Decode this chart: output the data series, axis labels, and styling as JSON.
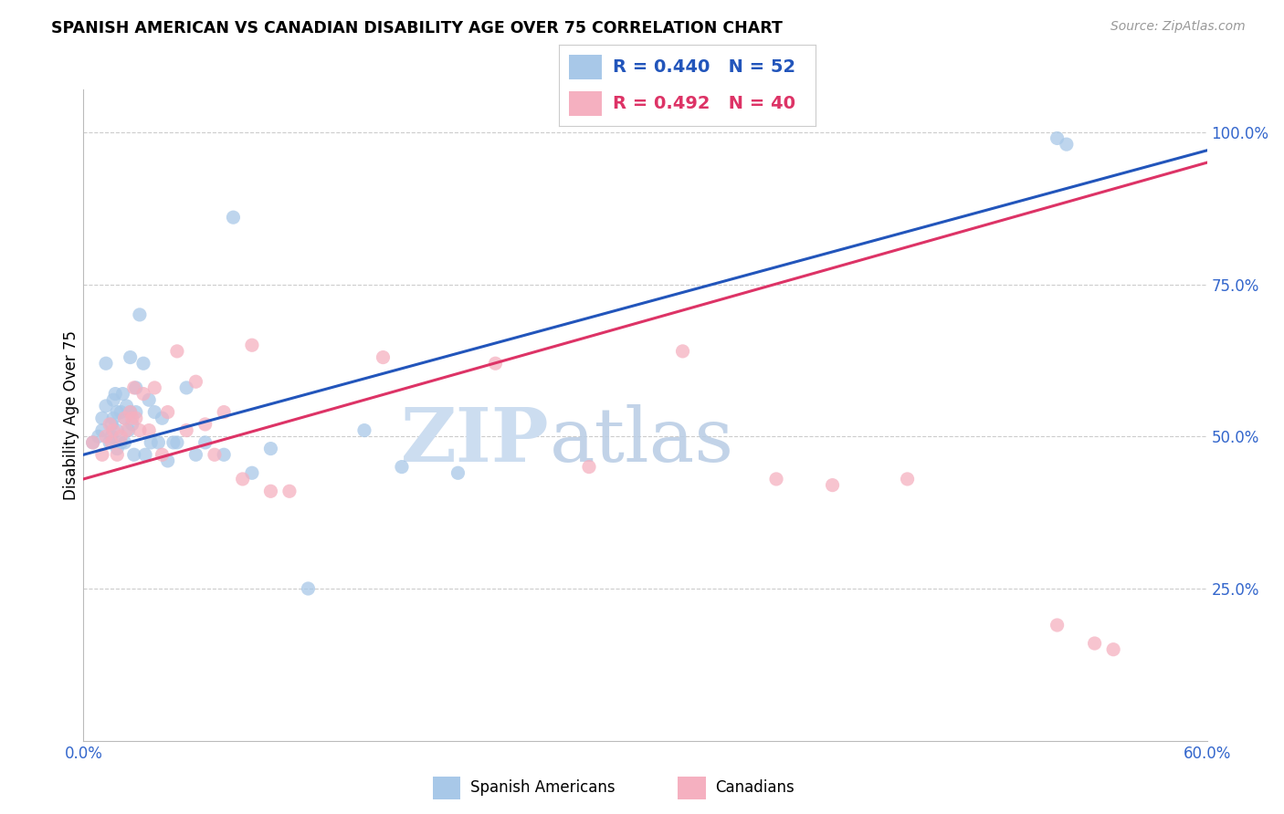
{
  "title": "SPANISH AMERICAN VS CANADIAN DISABILITY AGE OVER 75 CORRELATION CHART",
  "source": "Source: ZipAtlas.com",
  "ylabel": "Disability Age Over 75",
  "xmin": 0.0,
  "xmax": 0.6,
  "ymin": 0.0,
  "ymax": 1.07,
  "ytick_positions": [
    0.25,
    0.5,
    0.75,
    1.0
  ],
  "ytick_labels": [
    "25.0%",
    "50.0%",
    "75.0%",
    "100.0%"
  ],
  "blue_r": 0.44,
  "blue_n": 52,
  "pink_r": 0.492,
  "pink_n": 40,
  "blue_color": "#a8c8e8",
  "pink_color": "#f5b0c0",
  "blue_line_color": "#2255bb",
  "pink_line_color": "#dd3366",
  "axis_color": "#3366cc",
  "grid_color": "#cccccc",
  "blue_line_x0": 0.0,
  "blue_line_y0": 0.47,
  "blue_line_x1": 0.6,
  "blue_line_y1": 0.97,
  "pink_line_x0": 0.0,
  "pink_line_y0": 0.43,
  "pink_line_x1": 0.6,
  "pink_line_y1": 0.95,
  "blue_points_x": [
    0.005,
    0.008,
    0.01,
    0.01,
    0.012,
    0.012,
    0.014,
    0.015,
    0.015,
    0.016,
    0.016,
    0.017,
    0.018,
    0.018,
    0.018,
    0.02,
    0.02,
    0.021,
    0.022,
    0.022,
    0.023,
    0.024,
    0.025,
    0.025,
    0.026,
    0.027,
    0.028,
    0.028,
    0.03,
    0.032,
    0.033,
    0.035,
    0.036,
    0.038,
    0.04,
    0.042,
    0.045,
    0.048,
    0.05,
    0.055,
    0.06,
    0.065,
    0.075,
    0.08,
    0.09,
    0.1,
    0.12,
    0.15,
    0.17,
    0.2,
    0.52,
    0.525
  ],
  "blue_points_y": [
    0.49,
    0.5,
    0.51,
    0.53,
    0.55,
    0.62,
    0.49,
    0.5,
    0.52,
    0.53,
    0.56,
    0.57,
    0.48,
    0.51,
    0.54,
    0.49,
    0.54,
    0.57,
    0.49,
    0.53,
    0.55,
    0.51,
    0.54,
    0.63,
    0.52,
    0.47,
    0.54,
    0.58,
    0.7,
    0.62,
    0.47,
    0.56,
    0.49,
    0.54,
    0.49,
    0.53,
    0.46,
    0.49,
    0.49,
    0.58,
    0.47,
    0.49,
    0.47,
    0.86,
    0.44,
    0.48,
    0.25,
    0.51,
    0.45,
    0.44,
    0.99,
    0.98
  ],
  "pink_points_x": [
    0.005,
    0.01,
    0.012,
    0.014,
    0.015,
    0.016,
    0.018,
    0.02,
    0.022,
    0.023,
    0.025,
    0.026,
    0.027,
    0.028,
    0.03,
    0.032,
    0.035,
    0.038,
    0.042,
    0.045,
    0.05,
    0.055,
    0.06,
    0.065,
    0.07,
    0.075,
    0.085,
    0.09,
    0.1,
    0.11,
    0.16,
    0.22,
    0.27,
    0.32,
    0.37,
    0.4,
    0.44,
    0.52,
    0.54,
    0.55
  ],
  "pink_points_y": [
    0.49,
    0.47,
    0.5,
    0.52,
    0.49,
    0.51,
    0.47,
    0.5,
    0.53,
    0.51,
    0.54,
    0.53,
    0.58,
    0.53,
    0.51,
    0.57,
    0.51,
    0.58,
    0.47,
    0.54,
    0.64,
    0.51,
    0.59,
    0.52,
    0.47,
    0.54,
    0.43,
    0.65,
    0.41,
    0.41,
    0.63,
    0.62,
    0.45,
    0.64,
    0.43,
    0.42,
    0.43,
    0.19,
    0.16,
    0.15
  ]
}
